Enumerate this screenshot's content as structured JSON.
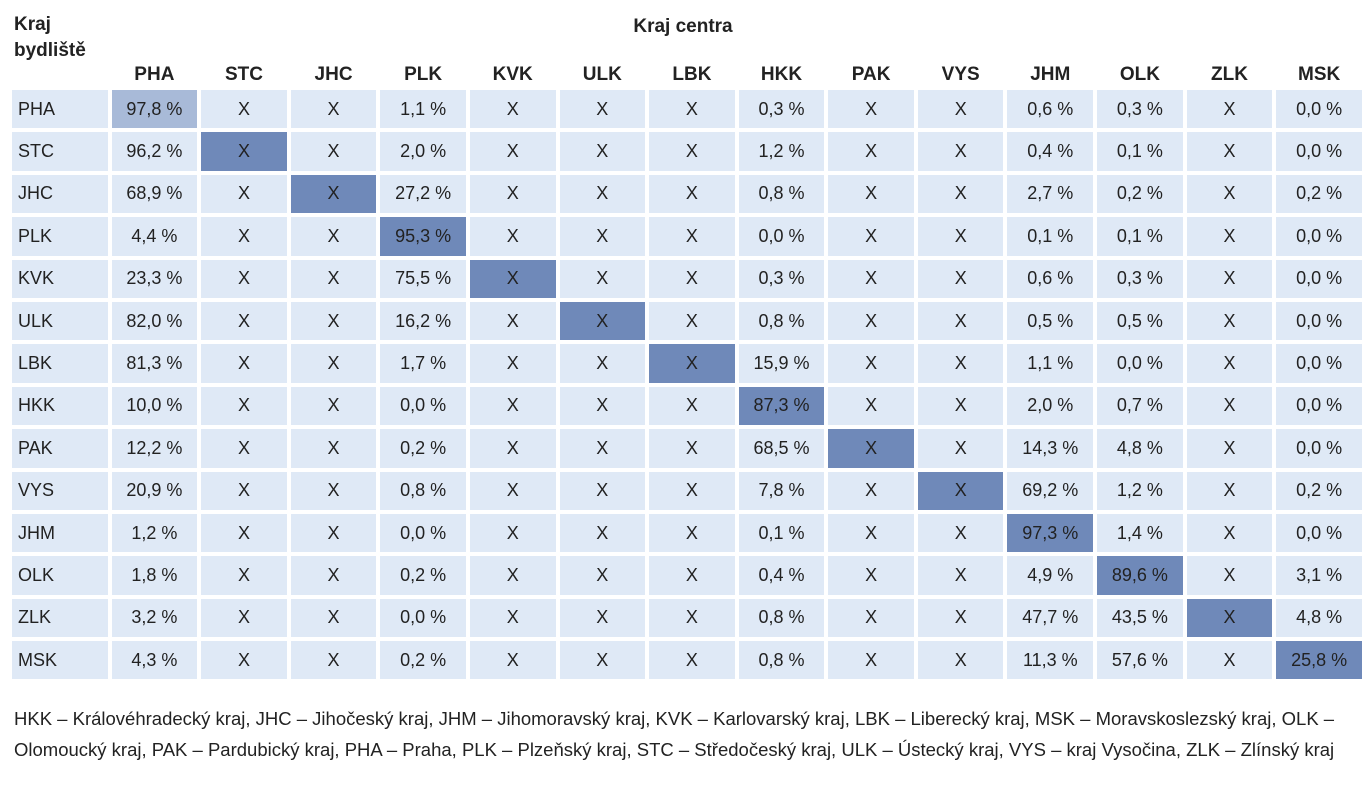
{
  "header": {
    "row_axis_line1": "Kraj",
    "row_axis_line2": "bydliště",
    "col_axis_title": "Kraj centra"
  },
  "columns": [
    "PHA",
    "STC",
    "JHC",
    "PLK",
    "KVK",
    "ULK",
    "LBK",
    "HKK",
    "PAK",
    "VYS",
    "JHM",
    "OLK",
    "ZLK",
    "MSK"
  ],
  "rows": [
    {
      "label": "PHA",
      "cells": [
        "97,8 %",
        "X",
        "X",
        "1,1 %",
        "X",
        "X",
        "X",
        "0,3 %",
        "X",
        "X",
        "0,6 %",
        "0,3 %",
        "X",
        "0,0 %"
      ]
    },
    {
      "label": "STC",
      "cells": [
        "96,2 %",
        "X",
        "X",
        "2,0 %",
        "X",
        "X",
        "X",
        "1,2 %",
        "X",
        "X",
        "0,4 %",
        "0,1 %",
        "X",
        "0,0 %"
      ]
    },
    {
      "label": "JHC",
      "cells": [
        "68,9 %",
        "X",
        "X",
        "27,2 %",
        "X",
        "X",
        "X",
        "0,8 %",
        "X",
        "X",
        "2,7 %",
        "0,2 %",
        "X",
        "0,2 %"
      ]
    },
    {
      "label": "PLK",
      "cells": [
        "4,4 %",
        "X",
        "X",
        "95,3 %",
        "X",
        "X",
        "X",
        "0,0 %",
        "X",
        "X",
        "0,1 %",
        "0,1 %",
        "X",
        "0,0 %"
      ]
    },
    {
      "label": "KVK",
      "cells": [
        "23,3 %",
        "X",
        "X",
        "75,5 %",
        "X",
        "X",
        "X",
        "0,3 %",
        "X",
        "X",
        "0,6 %",
        "0,3 %",
        "X",
        "0,0 %"
      ]
    },
    {
      "label": "ULK",
      "cells": [
        "82,0 %",
        "X",
        "X",
        "16,2 %",
        "X",
        "X",
        "X",
        "0,8 %",
        "X",
        "X",
        "0,5 %",
        "0,5 %",
        "X",
        "0,0 %"
      ]
    },
    {
      "label": "LBK",
      "cells": [
        "81,3 %",
        "X",
        "X",
        "1,7 %",
        "X",
        "X",
        "X",
        "15,9 %",
        "X",
        "X",
        "1,1 %",
        "0,0 %",
        "X",
        "0,0 %"
      ]
    },
    {
      "label": "HKK",
      "cells": [
        "10,0 %",
        "X",
        "X",
        "0,0 %",
        "X",
        "X",
        "X",
        "87,3 %",
        "X",
        "X",
        "2,0 %",
        "0,7 %",
        "X",
        "0,0 %"
      ]
    },
    {
      "label": "PAK",
      "cells": [
        "12,2 %",
        "X",
        "X",
        "0,2 %",
        "X",
        "X",
        "X",
        "68,5 %",
        "X",
        "X",
        "14,3 %",
        "4,8 %",
        "X",
        "0,0 %"
      ]
    },
    {
      "label": "VYS",
      "cells": [
        "20,9 %",
        "X",
        "X",
        "0,8 %",
        "X",
        "X",
        "X",
        "7,8 %",
        "X",
        "X",
        "69,2 %",
        "1,2 %",
        "X",
        "0,2 %"
      ]
    },
    {
      "label": "JHM",
      "cells": [
        "1,2 %",
        "X",
        "X",
        "0,0 %",
        "X",
        "X",
        "X",
        "0,1 %",
        "X",
        "X",
        "97,3 %",
        "1,4 %",
        "X",
        "0,0 %"
      ]
    },
    {
      "label": "OLK",
      "cells": [
        "1,8 %",
        "X",
        "X",
        "0,2 %",
        "X",
        "X",
        "X",
        "0,4 %",
        "X",
        "X",
        "4,9 %",
        "89,6 %",
        "X",
        "3,1 %"
      ]
    },
    {
      "label": "ZLK",
      "cells": [
        "3,2 %",
        "X",
        "X",
        "0,0 %",
        "X",
        "X",
        "X",
        "0,8 %",
        "X",
        "X",
        "47,7 %",
        "43,5 %",
        "X",
        "4,8 %"
      ]
    },
    {
      "label": "MSK",
      "cells": [
        "4,3 %",
        "X",
        "X",
        "0,2 %",
        "X",
        "X",
        "X",
        "0,8 %",
        "X",
        "X",
        "11,3 %",
        "57,6 %",
        "X",
        "25,8 %"
      ]
    }
  ],
  "colors": {
    "cell_background": "#dfe9f6",
    "diagonal_highlight": "#6f89b9",
    "first_cell_highlight": "#a8bad8"
  },
  "legend": "HKK – Královéhradecký kraj, JHC – Jihočeský kraj, JHM – Jihomoravský kraj, KVK – Karlovarský kraj, LBK – Liberecký kraj, MSK – Moravskoslezský kraj, OLK – Olomoucký kraj, PAK – Pardubický kraj, PHA – Praha, PLK – Plzeňský kraj, STC – Středočeský kraj, ULK – Ústecký kraj, VYS – kraj Vysočina, ZLK – Zlínský kraj"
}
